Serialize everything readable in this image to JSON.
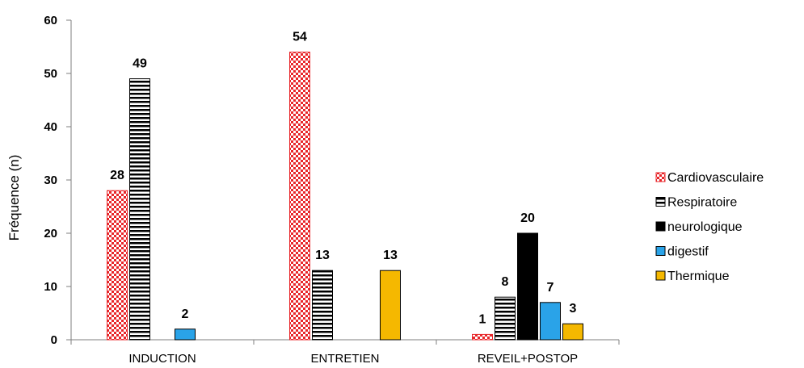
{
  "chart_data": {
    "type": "bar",
    "ylabel": "Fréquence (n)",
    "xlabel": "",
    "ylim": [
      0,
      60
    ],
    "yticks": [
      0,
      10,
      20,
      30,
      40,
      50,
      60
    ],
    "grid": false,
    "legend_position": "right",
    "categories": [
      "INDUCTION",
      "ENTRETIEN",
      "REVEIL+POSTOP"
    ],
    "series": [
      {
        "name": "Cardiovasculaire",
        "values": [
          28,
          54,
          1
        ],
        "color": "#e8262a",
        "pattern": "checker"
      },
      {
        "name": "Respiratoire",
        "values": [
          49,
          13,
          8
        ],
        "color": "#000000",
        "pattern": "horizontal-stripes"
      },
      {
        "name": "neurologique",
        "values": [
          null,
          null,
          20
        ],
        "color": "#000000",
        "pattern": "solid"
      },
      {
        "name": "digestif",
        "values": [
          2,
          null,
          7
        ],
        "color": "#2aa3e8",
        "pattern": "solid"
      },
      {
        "name": "Thermique",
        "values": [
          null,
          13,
          3
        ],
        "color": "#f5b800",
        "pattern": "solid"
      }
    ]
  }
}
